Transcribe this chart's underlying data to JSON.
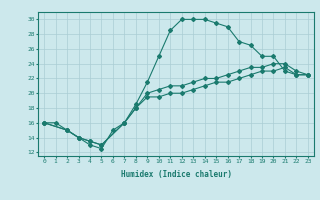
{
  "xlabel": "Humidex (Indice chaleur)",
  "bg_color": "#cce8ec",
  "grid_color": "#aacdd4",
  "line_color": "#1a7a6e",
  "xlim": [
    -0.5,
    23.5
  ],
  "ylim": [
    11.5,
    31.0
  ],
  "xticks": [
    0,
    1,
    2,
    3,
    4,
    5,
    6,
    7,
    8,
    9,
    10,
    11,
    12,
    13,
    14,
    15,
    16,
    17,
    18,
    19,
    20,
    21,
    22,
    23
  ],
  "yticks": [
    12,
    14,
    16,
    18,
    20,
    22,
    24,
    26,
    28,
    30
  ],
  "line1_x": [
    0,
    1,
    2,
    3,
    4,
    5,
    6,
    7,
    8,
    9,
    10,
    11,
    12,
    13,
    14,
    15,
    16,
    17,
    18,
    19,
    20,
    21,
    22,
    23
  ],
  "line1_y": [
    16,
    16,
    15,
    14,
    13,
    12.5,
    15,
    16,
    18.5,
    21.5,
    25,
    28.5,
    30,
    30,
    30,
    29.5,
    29,
    27,
    26.5,
    25,
    25,
    23,
    22.5,
    22.5
  ],
  "line2_x": [
    0,
    2,
    3,
    4,
    5,
    7,
    8,
    9,
    10,
    11,
    12,
    13,
    14,
    15,
    16,
    17,
    18,
    19,
    20,
    21,
    22,
    23
  ],
  "line2_y": [
    16,
    15,
    14,
    13.5,
    13,
    16,
    18,
    19.5,
    19.5,
    20,
    20,
    20.5,
    21,
    21.5,
    21.5,
    22,
    22.5,
    23,
    23,
    23.5,
    22.5,
    22.5
  ],
  "line3_x": [
    0,
    2,
    3,
    4,
    5,
    7,
    8,
    9,
    10,
    11,
    12,
    13,
    14,
    15,
    16,
    17,
    18,
    19,
    20,
    21,
    22,
    23
  ],
  "line3_y": [
    16,
    15,
    14,
    13.5,
    13,
    16,
    18,
    20,
    20.5,
    21,
    21,
    21.5,
    22,
    22,
    22.5,
    23,
    23.5,
    23.5,
    24,
    24,
    23,
    22.5
  ]
}
